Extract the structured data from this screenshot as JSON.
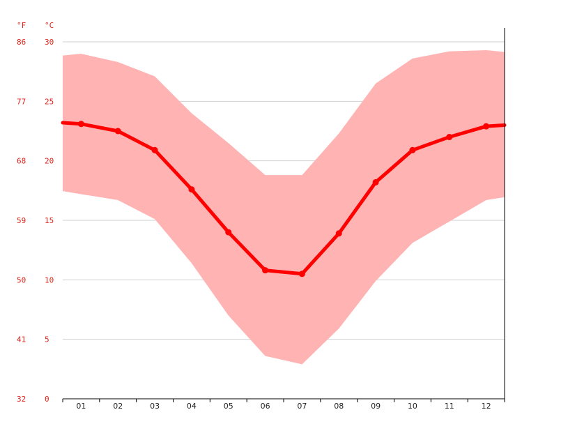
{
  "chart_data": {
    "type": "line",
    "units": {
      "f": "°F",
      "c": "°C"
    },
    "categories": [
      "01",
      "02",
      "03",
      "04",
      "05",
      "06",
      "07",
      "08",
      "09",
      "10",
      "11",
      "12"
    ],
    "y_ticks_c": [
      0,
      5,
      10,
      15,
      20,
      25,
      30
    ],
    "y_ticks_f": [
      "32",
      "41",
      "50",
      "59",
      "68",
      "77",
      "86"
    ],
    "ylim": [
      0,
      30
    ],
    "grid": true,
    "series": [
      {
        "role": "mean",
        "values": [
          23.1,
          22.5,
          20.9,
          17.6,
          14.0,
          10.8,
          10.5,
          13.9,
          18.2,
          20.9,
          22.0,
          22.9
        ],
        "color": "#ff0000"
      },
      {
        "role": "max",
        "values": [
          29.0,
          28.3,
          27.1,
          24.0,
          21.5,
          18.8,
          18.8,
          22.3,
          26.5,
          28.6,
          29.2,
          29.3
        ],
        "color": "#ffb3b3"
      },
      {
        "role": "min",
        "values": [
          17.2,
          16.7,
          15.1,
          11.4,
          7.0,
          3.6,
          2.9,
          5.9,
          9.9,
          13.1,
          14.9,
          16.7
        ],
        "color": "#ffb3b3"
      }
    ]
  }
}
